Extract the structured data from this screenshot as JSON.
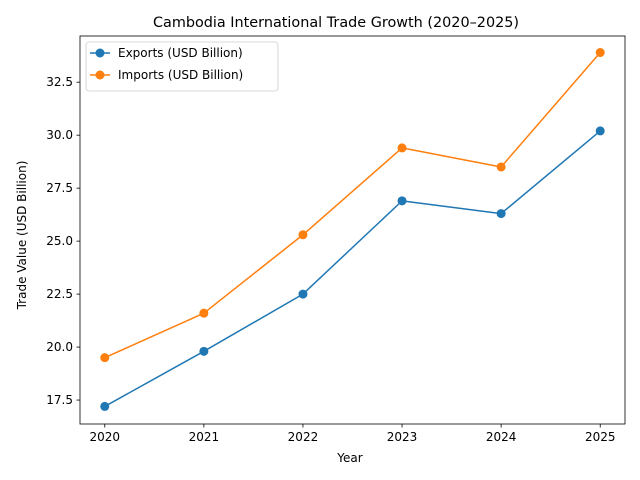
{
  "chart_data": {
    "type": "line",
    "title": "Cambodia International Trade Growth (2020–2025)",
    "xlabel": "Year",
    "ylabel": "Trade Value (USD Billion)",
    "x": [
      2020,
      2021,
      2022,
      2023,
      2024,
      2025
    ],
    "x_tick_labels": [
      "2020",
      "2021",
      "2022",
      "2023",
      "2024",
      "2025"
    ],
    "y_ticks": [
      17.5,
      20.0,
      22.5,
      25.0,
      27.5,
      30.0,
      32.5
    ],
    "y_tick_labels": [
      "17.5",
      "20.0",
      "22.5",
      "25.0",
      "27.5",
      "30.0",
      "32.5"
    ],
    "xlim": [
      2019.75,
      2025.25
    ],
    "ylim": [
      16.37,
      34.68
    ],
    "grid": false,
    "legend_position": "top-left",
    "series": [
      {
        "name": "Exports (USD Billion)",
        "color": "#1f77b4",
        "values": [
          17.2,
          19.8,
          22.5,
          26.9,
          26.3,
          30.2
        ]
      },
      {
        "name": "Imports (USD Billion)",
        "color": "#ff7f0e",
        "values": [
          19.5,
          21.6,
          25.3,
          29.4,
          28.5,
          33.9
        ]
      }
    ]
  }
}
